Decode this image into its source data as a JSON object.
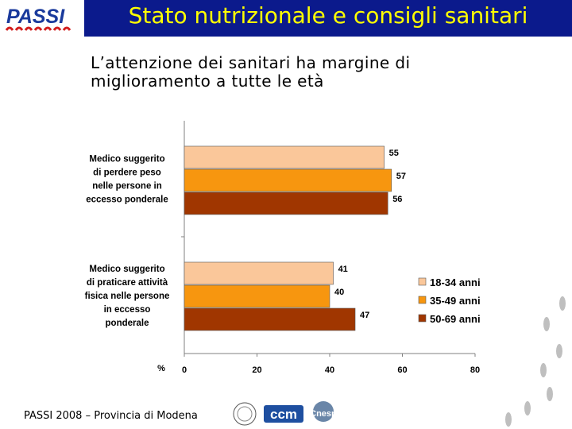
{
  "header": {
    "logo_text": "PASSI",
    "title": "Stato nutrizionale e consigli sanitari"
  },
  "subtitle": "L’attenzione dei sanitari ha margine di miglioramento a tutte le età",
  "footer": {
    "text": "PASSI 2008 – Provincia di Modena",
    "logo_ccm": "ccm",
    "logo_cnesps": "Cnesps"
  },
  "colors": {
    "header_bg": "#0b1a8c",
    "title": "#ffff00",
    "series": [
      "#fac79a",
      "#f7960f",
      "#a03600"
    ]
  },
  "chart_data": {
    "type": "bar",
    "orientation": "horizontal",
    "categories": [
      [
        "Medico suggerito",
        "di perdere peso",
        "nelle persone in",
        "eccesso ponderale"
      ],
      [
        "Medico suggerito",
        "di praticare attività",
        "fisica nelle persone",
        "in eccesso",
        "ponderale"
      ]
    ],
    "series": [
      {
        "name": "18-34 anni",
        "values": [
          55,
          41
        ]
      },
      {
        "name": "35-49 anni",
        "values": [
          57,
          40
        ]
      },
      {
        "name": "50-69 anni",
        "values": [
          56,
          47
        ]
      }
    ],
    "xlabel": "%",
    "xlim": [
      0,
      80
    ],
    "xticks": [
      "0",
      "20",
      "40",
      "60",
      "80"
    ],
    "grid": false,
    "legend": "right"
  }
}
